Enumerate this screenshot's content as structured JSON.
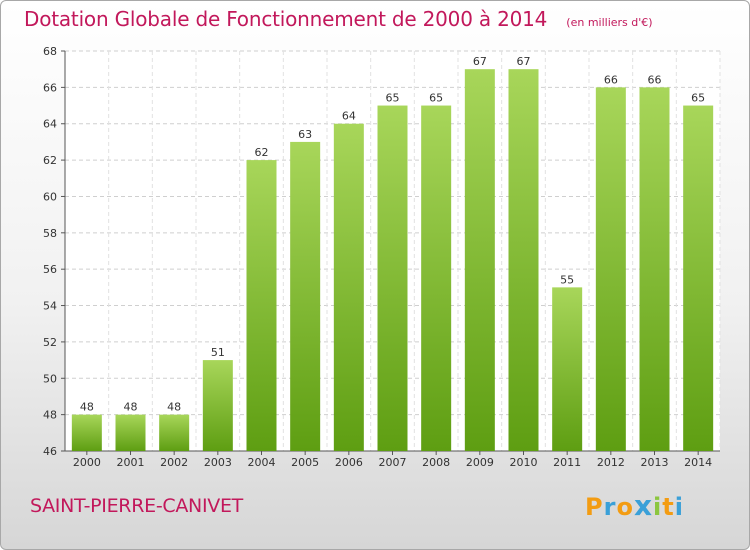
{
  "title": "Dotation Globale de Fonctionnement de 2000 à 2014",
  "unit": "(en milliers d'€)",
  "commune": "SAINT-PIERRE-CANIVET",
  "logo": {
    "letters": [
      "P",
      "r",
      "o",
      "x",
      "i",
      "t",
      "i"
    ],
    "colors": [
      "#f39c12",
      "#3aa0d8",
      "#f39c12",
      "#3aa0d8",
      "#8cc63f",
      "#f39c12",
      "#3aa0d8"
    ]
  },
  "colors": {
    "bar_top": "#a8d65a",
    "bar_bottom": "#5e9e12",
    "accent": "#c2185b"
  },
  "chart_data": {
    "type": "bar",
    "categories": [
      "2000",
      "2001",
      "2002",
      "2003",
      "2004",
      "2005",
      "2006",
      "2007",
      "2008",
      "2009",
      "2010",
      "2011",
      "2012",
      "2013",
      "2014"
    ],
    "values": [
      48,
      48,
      48,
      51,
      62,
      63,
      64,
      65,
      65,
      67,
      67,
      55,
      66,
      66,
      65
    ],
    "ylim": [
      46,
      68
    ],
    "yticks": [
      46,
      48,
      50,
      52,
      54,
      56,
      58,
      60,
      62,
      64,
      66,
      68
    ],
    "grid": true
  }
}
